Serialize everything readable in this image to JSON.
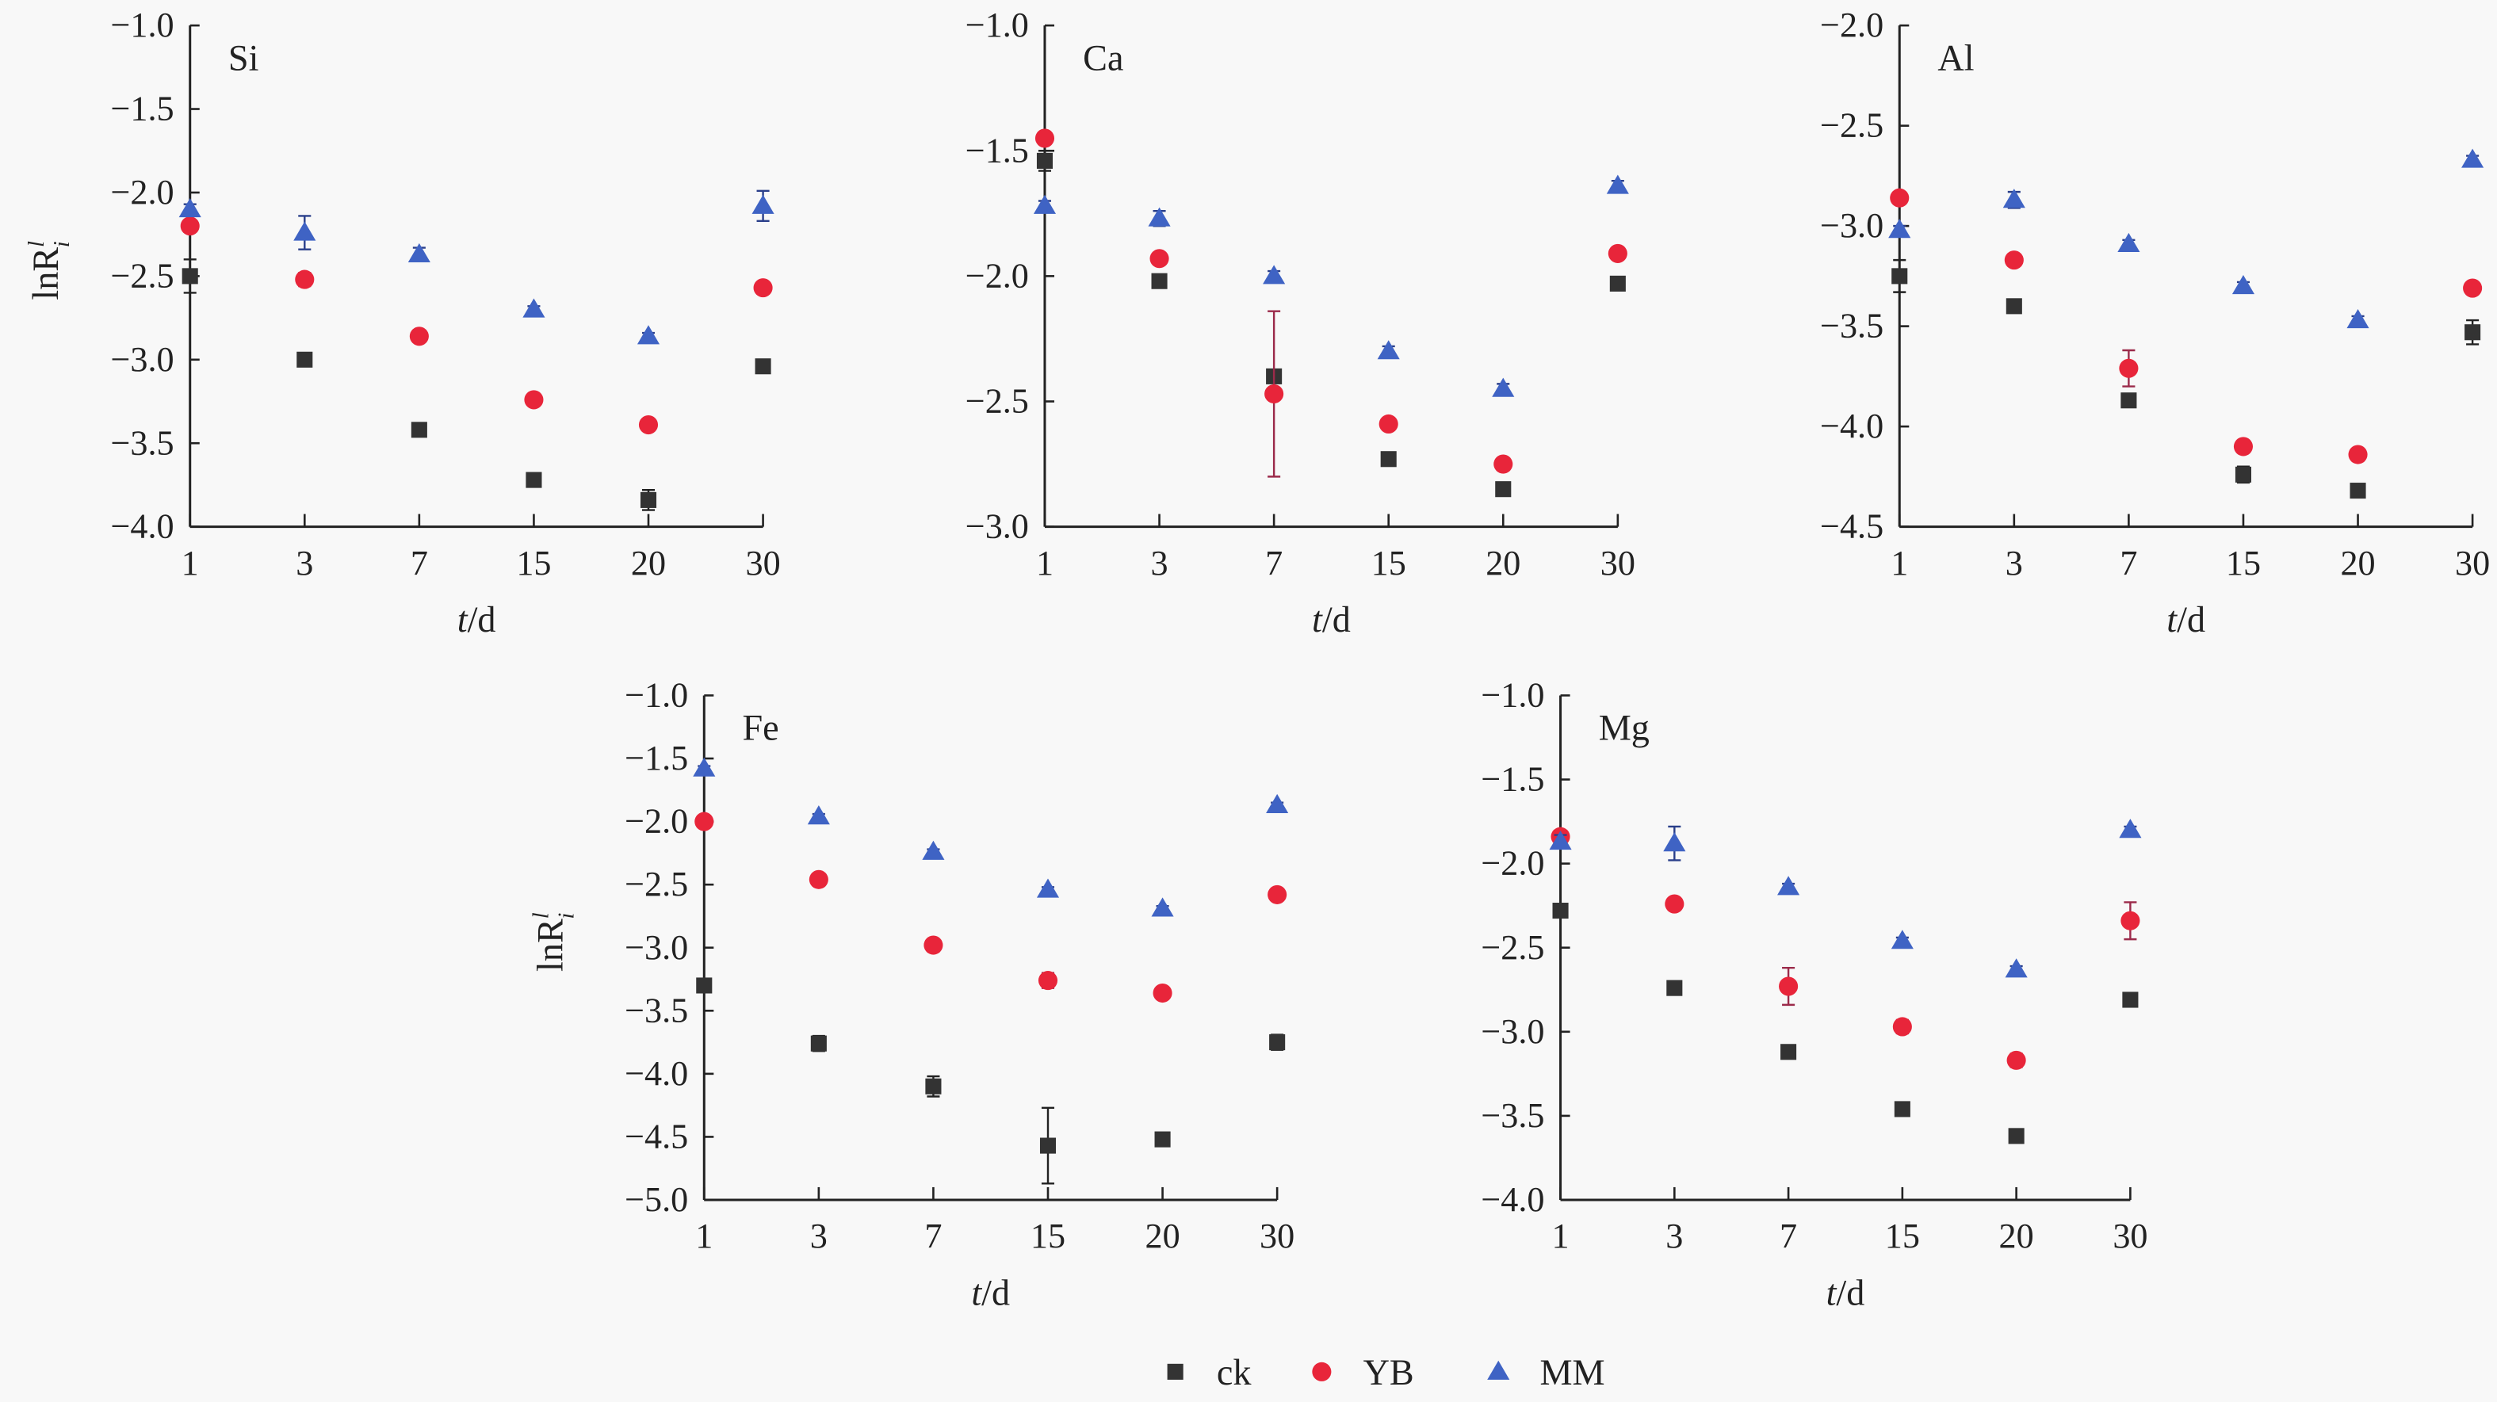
{
  "chart_data": [
    {
      "type": "scatter",
      "title": "Si",
      "xlabel_italic": "t",
      "xlabel_rest": "/d",
      "ylabel": "lnR",
      "ylabel_sub": "i",
      "ylabel_sup": "l",
      "categories": [
        "1",
        "3",
        "7",
        "15",
        "20",
        "30"
      ],
      "ylim": [
        -4.0,
        -1.0
      ],
      "yticks": [
        "−1.0",
        "−1.5",
        "−2.0",
        "−2.5",
        "−3.0",
        "−3.5",
        "−4.0"
      ],
      "series": [
        {
          "name": "ck",
          "values": [
            -2.5,
            -3.0,
            -3.42,
            -3.72,
            -3.84,
            -3.04
          ],
          "errors": [
            0.1,
            0.02,
            0.02,
            0.02,
            0.06,
            0.02
          ]
        },
        {
          "name": "YB",
          "values": [
            -2.2,
            -2.52,
            -2.86,
            -3.24,
            -3.39,
            -2.57
          ],
          "errors": [
            0.03,
            0.04,
            0.02,
            0.02,
            0.02,
            0.02
          ]
        },
        {
          "name": "MM",
          "values": [
            -2.1,
            -2.24,
            -2.37,
            -2.7,
            -2.86,
            -2.08
          ],
          "errors": [
            0.03,
            0.1,
            0.04,
            0.02,
            0.02,
            0.09
          ]
        }
      ]
    },
    {
      "type": "scatter",
      "title": "Ca",
      "xlabel_italic": "t",
      "xlabel_rest": "/d",
      "categories": [
        "1",
        "3",
        "7",
        "15",
        "20",
        "30"
      ],
      "ylim": [
        -3.0,
        -1.0
      ],
      "yticks": [
        "−1.0",
        "−1.5",
        "−2.0",
        "−2.5",
        "−3.0"
      ],
      "series": [
        {
          "name": "ck",
          "values": [
            -1.54,
            -2.02,
            -2.4,
            -2.73,
            -2.85,
            -2.03
          ],
          "errors": [
            0.04,
            0.02,
            0.02,
            0.02,
            0.02,
            0.02
          ]
        },
        {
          "name": "YB",
          "values": [
            -1.45,
            -1.93,
            -2.47,
            -2.59,
            -2.75,
            -1.91
          ],
          "errors": [
            0.02,
            0.02,
            0.33,
            0.02,
            0.02,
            0.02
          ]
        },
        {
          "name": "MM",
          "values": [
            -1.72,
            -1.77,
            -2.0,
            -2.3,
            -2.45,
            -1.64
          ],
          "errors": [
            0.02,
            0.03,
            0.02,
            0.02,
            0.02,
            0.02
          ]
        }
      ]
    },
    {
      "type": "scatter",
      "title": "Al",
      "xlabel_italic": "t",
      "xlabel_rest": "/d",
      "categories": [
        "1",
        "3",
        "7",
        "15",
        "20",
        "30"
      ],
      "ylim": [
        -4.5,
        -2.0
      ],
      "yticks": [
        "−2.0",
        "−2.5",
        "−3.0",
        "−3.5",
        "−4.0",
        "−4.5"
      ],
      "series": [
        {
          "name": "ck",
          "values": [
            -3.25,
            -3.4,
            -3.87,
            -4.24,
            -4.32,
            -3.53
          ],
          "errors": [
            0.08,
            0.02,
            0.02,
            0.04,
            0.02,
            0.06
          ]
        },
        {
          "name": "YB",
          "values": [
            -2.86,
            -3.17,
            -3.71,
            -4.1,
            -4.14,
            -3.31
          ],
          "errors": [
            0.02,
            0.02,
            0.09,
            0.02,
            0.02,
            0.02
          ]
        },
        {
          "name": "MM",
          "values": [
            -3.02,
            -2.87,
            -3.09,
            -3.3,
            -3.47,
            -2.67
          ],
          "errors": [
            0.02,
            0.04,
            0.02,
            0.02,
            0.02,
            0.02
          ]
        }
      ]
    },
    {
      "type": "scatter",
      "title": "Fe",
      "xlabel_italic": "t",
      "xlabel_rest": "/d",
      "ylabel": "lnR",
      "ylabel_sub": "i",
      "ylabel_sup": "l",
      "categories": [
        "1",
        "3",
        "7",
        "15",
        "20",
        "30"
      ],
      "ylim": [
        -5.0,
        -1.0
      ],
      "yticks": [
        "−1.0",
        "−1.5",
        "−2.0",
        "−2.5",
        "−3.0",
        "−3.5",
        "−4.0",
        "−4.5",
        "−5.0"
      ],
      "series": [
        {
          "name": "ck",
          "values": [
            -3.3,
            -3.76,
            -4.1,
            -4.57,
            -4.52,
            -3.75
          ],
          "errors": [
            0.02,
            0.06,
            0.08,
            0.3,
            0.05,
            0.06
          ]
        },
        {
          "name": "YB",
          "values": [
            -2.0,
            -2.46,
            -2.98,
            -3.26,
            -3.36,
            -2.58
          ],
          "errors": [
            0.02,
            0.02,
            0.02,
            0.06,
            0.03,
            0.02
          ]
        },
        {
          "name": "MM",
          "values": [
            -1.58,
            -1.96,
            -2.24,
            -2.54,
            -2.69,
            -1.87
          ],
          "errors": [
            0.02,
            0.02,
            0.02,
            0.02,
            0.02,
            0.02
          ]
        }
      ]
    },
    {
      "type": "scatter",
      "title": "Mg",
      "xlabel_italic": "t",
      "xlabel_rest": "/d",
      "categories": [
        "1",
        "3",
        "7",
        "15",
        "20",
        "30"
      ],
      "ylim": [
        -4.0,
        -1.0
      ],
      "yticks": [
        "−1.0",
        "−1.5",
        "−2.0",
        "−2.5",
        "−3.0",
        "−3.5",
        "−4.0"
      ],
      "series": [
        {
          "name": "ck",
          "values": [
            -2.28,
            -2.74,
            -3.12,
            -3.46,
            -3.62,
            -2.81
          ],
          "errors": [
            0.02,
            0.02,
            0.02,
            0.02,
            0.02,
            0.02
          ]
        },
        {
          "name": "YB",
          "values": [
            -1.84,
            -2.24,
            -2.73,
            -2.97,
            -3.17,
            -2.34
          ],
          "errors": [
            0.02,
            0.02,
            0.11,
            0.04,
            0.04,
            0.11
          ]
        },
        {
          "name": "MM",
          "values": [
            -1.87,
            -1.88,
            -2.14,
            -2.46,
            -2.63,
            -1.8
          ],
          "errors": [
            0.04,
            0.1,
            0.02,
            0.02,
            0.02,
            0.02
          ]
        }
      ]
    }
  ],
  "legend": {
    "placement": "bottom-center",
    "items": [
      {
        "name": "ck",
        "marker": "square",
        "color": "#333333"
      },
      {
        "name": "YB",
        "marker": "circle",
        "color": "#e8253a"
      },
      {
        "name": "MM",
        "marker": "triangle",
        "color": "#3f63c4"
      }
    ]
  },
  "colors": {
    "ck": "#333333",
    "YB": "#e8253a",
    "MM": "#3f63c4",
    "YB_error": "#9b2a4a",
    "axis": "#222222"
  }
}
